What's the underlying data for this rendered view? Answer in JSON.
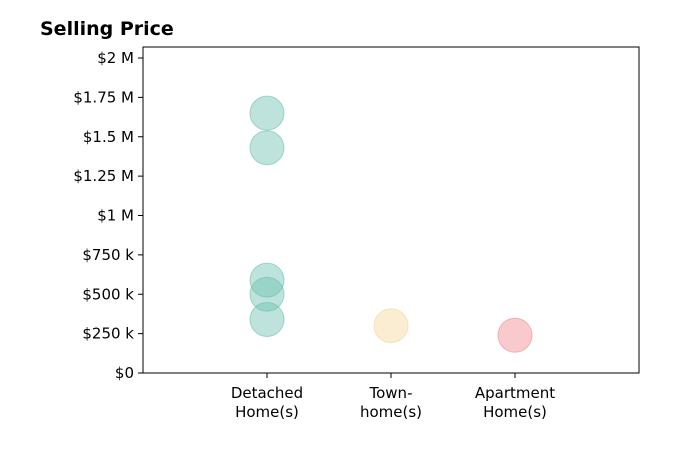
{
  "chart_data": {
    "type": "strip",
    "title": "Selling Price",
    "categories": [
      "Detached\nHome(s)",
      "Town-\nhome(s)",
      "Apartment\nHome(s)"
    ],
    "values": [
      [
        1650000,
        1430000,
        590000,
        500000,
        340000
      ],
      [
        300000
      ],
      [
        240000
      ]
    ],
    "colors": [
      "#6cc0b1",
      "#f3d79b",
      "#ef8a93"
    ],
    "ylim": [
      0,
      2000000
    ],
    "yticks": [
      {
        "value": 0,
        "label": "$0"
      },
      {
        "value": 250000,
        "label": "$250 k"
      },
      {
        "value": 500000,
        "label": "$500 k"
      },
      {
        "value": 750000,
        "label": "$750 k"
      },
      {
        "value": 1000000,
        "label": "$1 M"
      },
      {
        "value": 1250000,
        "label": "$1.25 M"
      },
      {
        "value": 1500000,
        "label": "$1.5 M"
      },
      {
        "value": 1750000,
        "label": "$1.75 M"
      },
      {
        "value": 2000000,
        "label": "$2 M"
      }
    ]
  }
}
